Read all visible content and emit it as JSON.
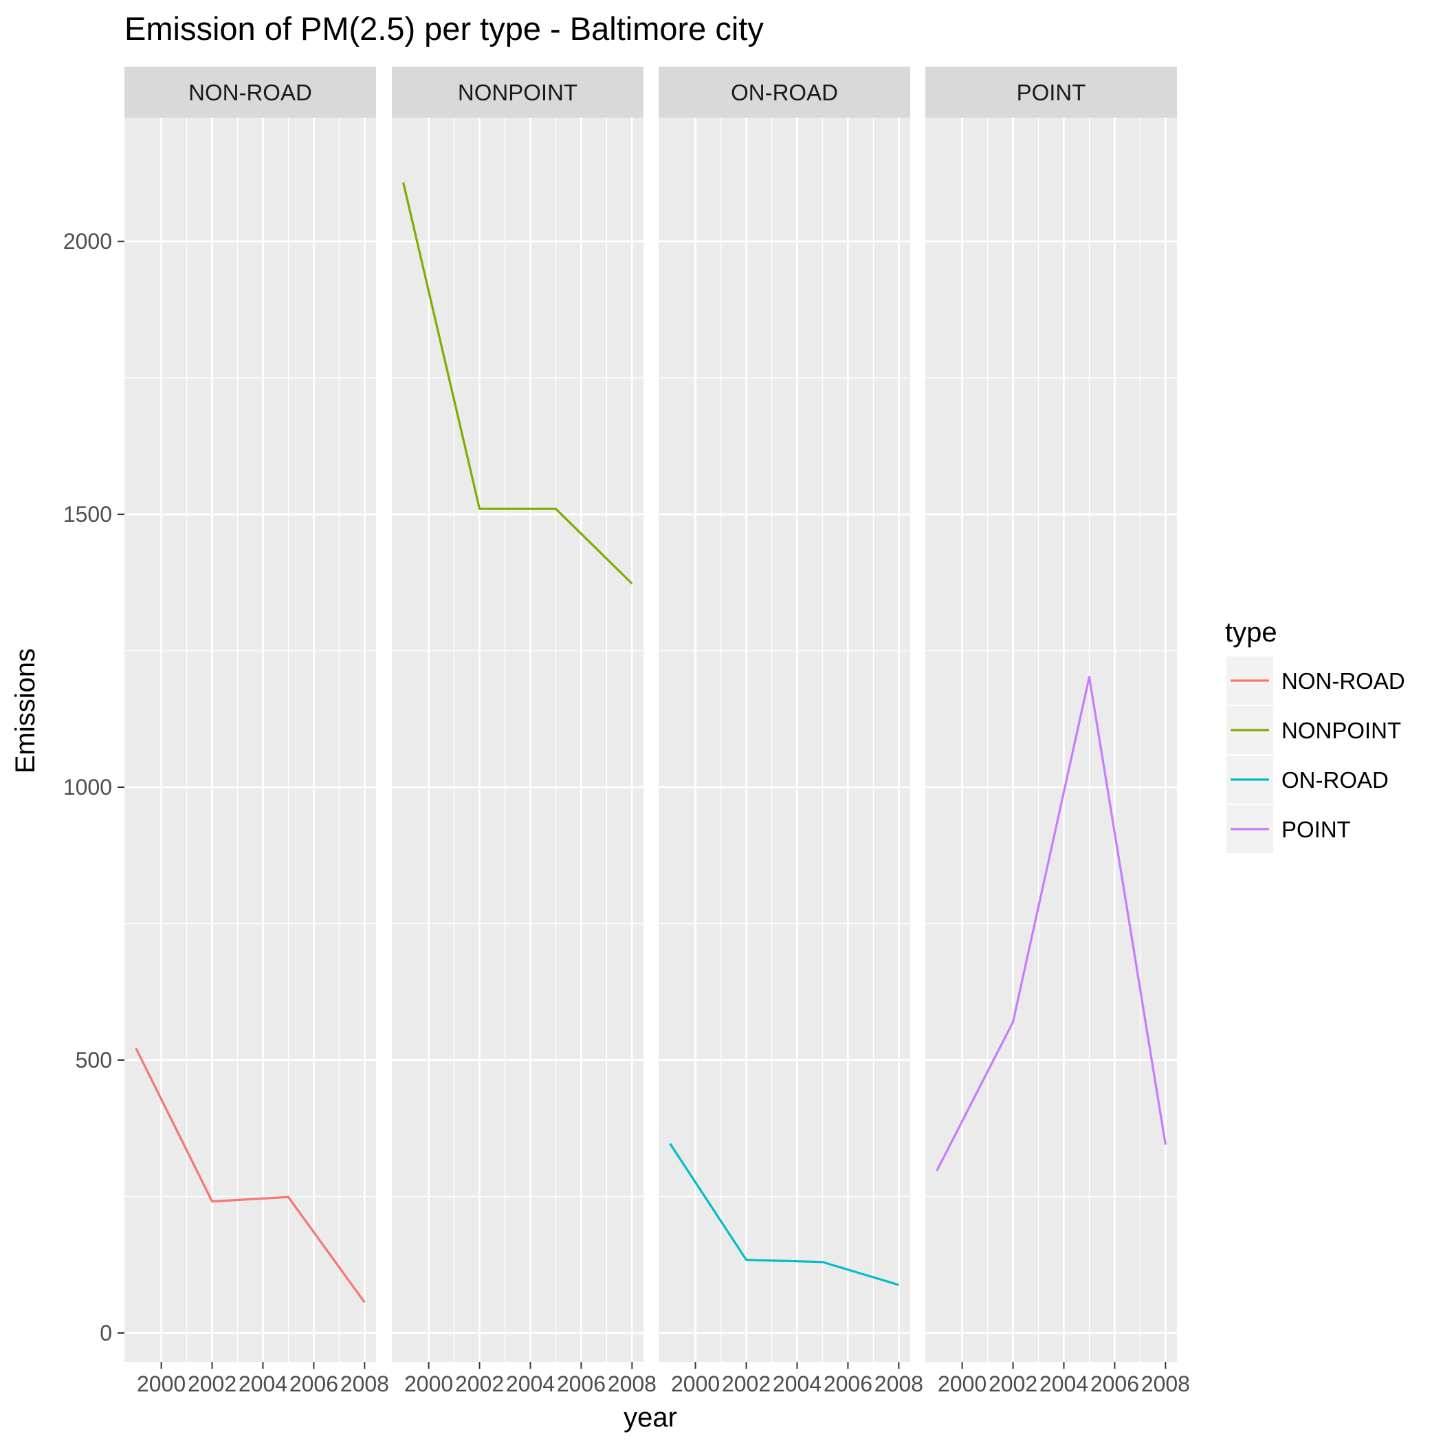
{
  "chart_data": {
    "type": "line",
    "title": "Emission of PM(2.5) per type - Baltimore city",
    "xlabel": "year",
    "ylabel": "Emissions",
    "x": [
      1999,
      2002,
      2005,
      2008
    ],
    "x_ticks": [
      2000,
      2002,
      2004,
      2006,
      2008
    ],
    "x_tick_labels": [
      "2000",
      "2002",
      "2004",
      "2006",
      "2008"
    ],
    "xlim": [
      1998.55,
      2008.45
    ],
    "y_ticks": [
      0,
      500,
      1000,
      1500,
      2000
    ],
    "y_tick_labels": [
      "0",
      "500",
      "1000",
      "1500",
      "2000"
    ],
    "ylim": [
      -53,
      2227
    ],
    "grid": true,
    "legend": {
      "title": "type",
      "position": "right"
    },
    "facets": [
      "NON-ROAD",
      "NONPOINT",
      "ON-ROAD",
      "POINT"
    ],
    "series": [
      {
        "name": "NON-ROAD",
        "color": "#F8766D",
        "values": [
          522,
          241,
          249,
          56
        ]
      },
      {
        "name": "NONPOINT",
        "color": "#7CAE00",
        "values": [
          2108,
          1510,
          1510,
          1373
        ]
      },
      {
        "name": "ON-ROAD",
        "color": "#00BFC4",
        "values": [
          347,
          134,
          130,
          88
        ]
      },
      {
        "name": "POINT",
        "color": "#C77CFF",
        "values": [
          297,
          570,
          1202,
          345
        ]
      }
    ]
  }
}
